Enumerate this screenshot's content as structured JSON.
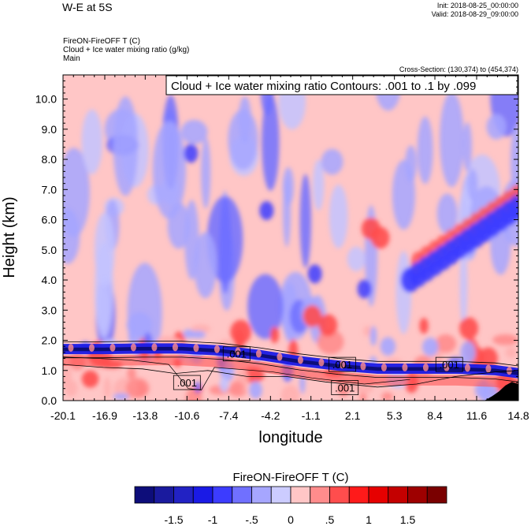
{
  "header": {
    "title": "W-E at 5S",
    "init": "Init: 2018-08-25_00:00:00",
    "valid": "Valid: 2018-08-29_09:00:00",
    "field_line1": "FireON-FireOFF T   (C)",
    "field_line2": "Cloud + Ice water mixing ratio   (g/kg)",
    "field_line3": "Main",
    "cross_section": "Cross-Section: (130,374) to (454,374)"
  },
  "chart_data": {
    "type": "heatmap",
    "title": "W-E at 5S",
    "xlabel": "longitude",
    "ylabel": "Height (km)",
    "x_ticks": [
      "-20.1",
      "-16.9",
      "-13.8",
      "-10.6",
      "-7.4",
      "-4.2",
      "-1.1",
      "2.1",
      "5.3",
      "8.4",
      "11.6",
      "14.8"
    ],
    "y_ticks": [
      "0.0",
      "1.0",
      "2.0",
      "3.0",
      "4.0",
      "5.0",
      "6.0",
      "7.0",
      "8.0",
      "9.0",
      "10.0"
    ],
    "xlim": [
      -20.1,
      14.8
    ],
    "ylim": [
      0,
      10.8
    ],
    "contour_legend": "Cloud + Ice water mixing ratio Contours: .001 to .1 by .099",
    "contour_labels": [
      {
        "text": ".001",
        "x": -6.8,
        "y": 1.55
      },
      {
        "text": ".001",
        "x": 1.3,
        "y": 1.2
      },
      {
        "text": ".001",
        "x": -10.6,
        "y": 0.6
      },
      {
        "text": ".001",
        "x": 1.5,
        "y": 0.43
      },
      {
        "text": ".001",
        "x": 9.5,
        "y": 1.2
      }
    ],
    "cloud_layer": {
      "x": [
        -20.1,
        -17.0,
        -14.0,
        -11.0,
        -8.0,
        -5.0,
        -2.0,
        1.0,
        4.0,
        7.0,
        10.0,
        13.0,
        14.8
      ],
      "y": [
        1.7,
        1.7,
        1.72,
        1.72,
        1.65,
        1.5,
        1.3,
        1.15,
        1.05,
        1.05,
        1.05,
        1.0,
        0.9
      ]
    },
    "colorbar": {
      "title": "FireON-FireOFF T  (C)",
      "levels": [
        "-1.5",
        "-1",
        "-.5",
        "0",
        ".5",
        "1",
        "1.5"
      ],
      "colors": [
        "#0d0d7a",
        "#1a1a9e",
        "#2222c4",
        "#1a1ae6",
        "#3c3cff",
        "#7070ff",
        "#a6a6ff",
        "#ccccff",
        "#ffc6c6",
        "#ff8c8c",
        "#ff4d4d",
        "#ff1a1a",
        "#e60000",
        "#c40000",
        "#9e0000",
        "#7a0000"
      ]
    },
    "grid": false
  }
}
